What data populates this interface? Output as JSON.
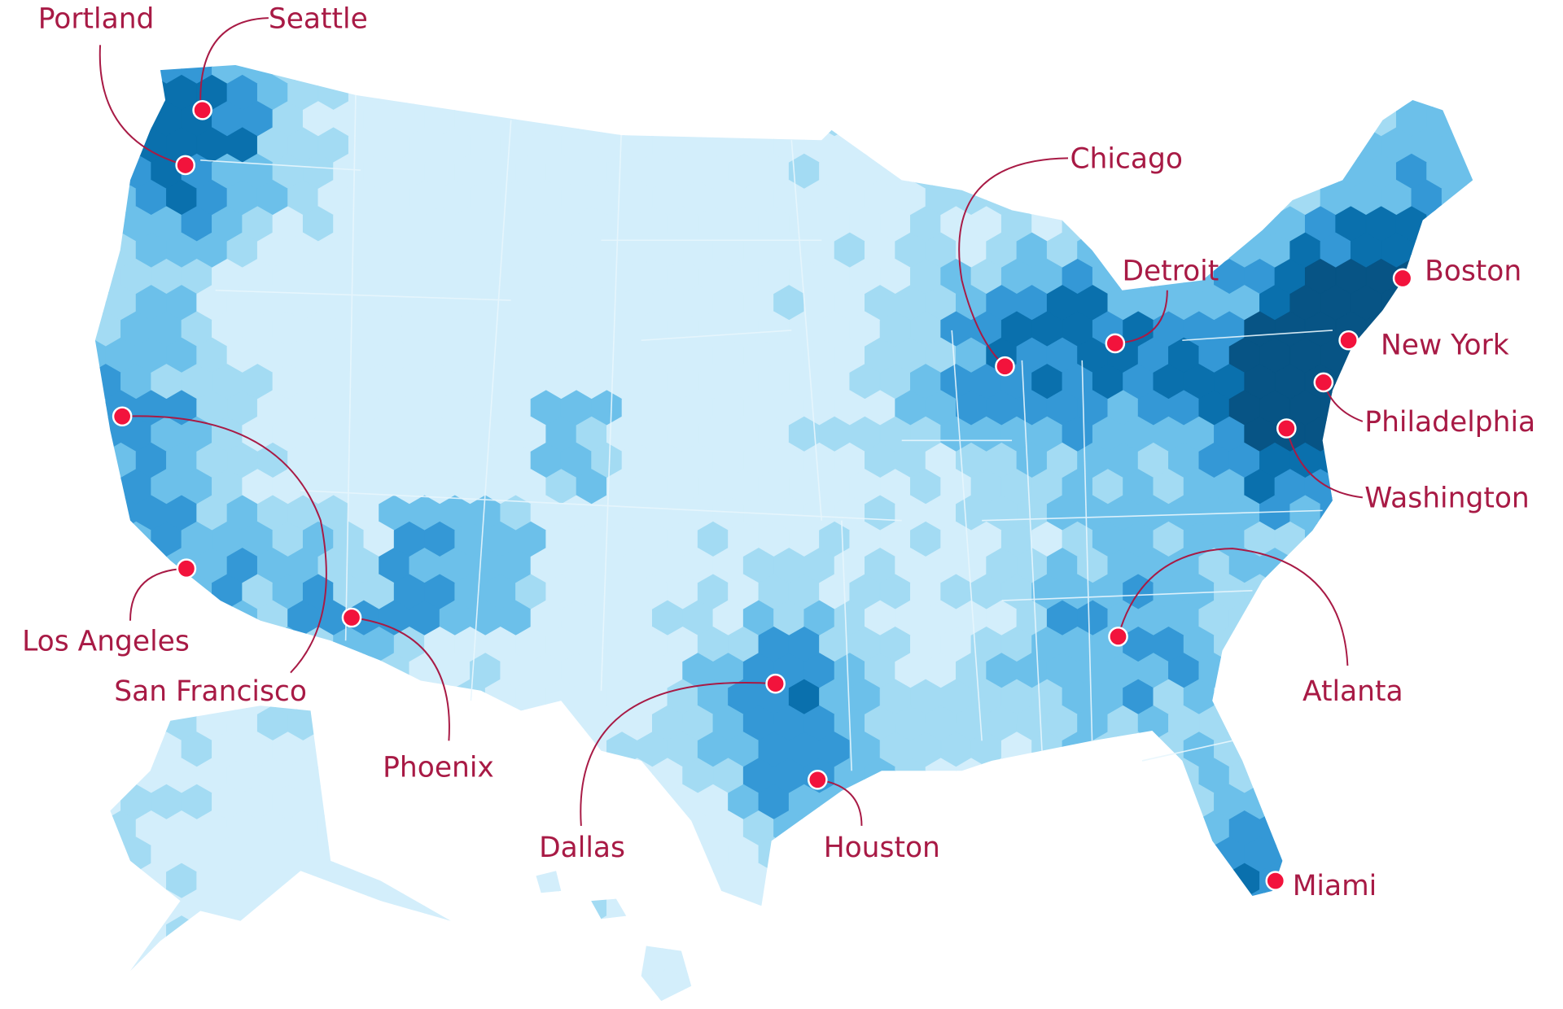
{
  "map": {
    "type": "hexbin density map",
    "region": "United States",
    "colors": {
      "levels": [
        "#d3eefb",
        "#a3dbf3",
        "#6cc0ea",
        "#3498d6",
        "#0a70ad",
        "#075485"
      ],
      "city_label": "#a81a45",
      "city_dot": "#f2133c",
      "state_lines": "#e8f6fd"
    },
    "cities": [
      {
        "name": "Portland"
      },
      {
        "name": "Seattle"
      },
      {
        "name": "Chicago"
      },
      {
        "name": "Detroit"
      },
      {
        "name": "Boston"
      },
      {
        "name": "New York"
      },
      {
        "name": "Philadelphia"
      },
      {
        "name": "Washington"
      },
      {
        "name": "Atlanta"
      },
      {
        "name": "Miami"
      },
      {
        "name": "Houston"
      },
      {
        "name": "Dallas"
      },
      {
        "name": "Phoenix"
      },
      {
        "name": "San Francisco"
      },
      {
        "name": "Los Angeles"
      }
    ]
  }
}
